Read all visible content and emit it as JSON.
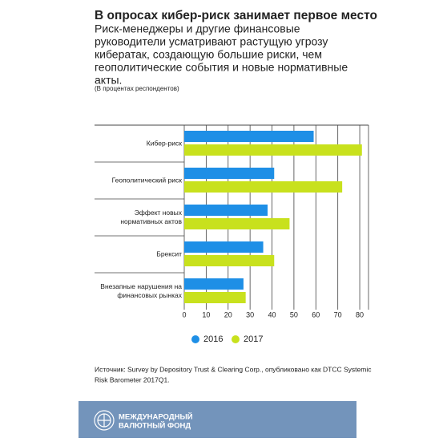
{
  "chart_data": {
    "type": "barh",
    "title": "В опросах кибер-риск занимает первое место",
    "subtitle": [
      "Риск-менеджеры и другие финансовые",
      "руководители усматривают растущую угрозу",
      "кибератак, создающую большие риски, чем",
      "геополитические события и новые нормативные",
      "акты."
    ],
    "note": "(В процентах респондентов)",
    "categories": [
      [
        "Кибер-риск"
      ],
      [
        "Геополитический риск"
      ],
      [
        "Эффект новых",
        "нормативных актов"
      ],
      [
        "Брексит"
      ],
      [
        "Внезапные нарушения на",
        "финансовых рынках"
      ]
    ],
    "series": [
      {
        "name": "2016",
        "color": "#1e8fe6",
        "values": [
          59,
          41,
          38,
          36,
          27
        ]
      },
      {
        "name": "2017",
        "color": "#c8e11d",
        "values": [
          81,
          72,
          48,
          41,
          28
        ]
      }
    ],
    "xlim": [
      0,
      84
    ],
    "xticks": [
      0,
      10,
      20,
      30,
      40,
      50,
      60,
      70,
      80
    ],
    "grid": true,
    "source": [
      "Источник: Survey by Depository Trust & Clearing Corp., опубликовано как  DTCC Systemic",
      "Risk Barometer 2017Q1."
    ]
  },
  "footer": {
    "org": [
      "МЕЖДУНАРОДНЫЙ",
      "ВАЛЮТНЫЙ ФОНД"
    ]
  }
}
